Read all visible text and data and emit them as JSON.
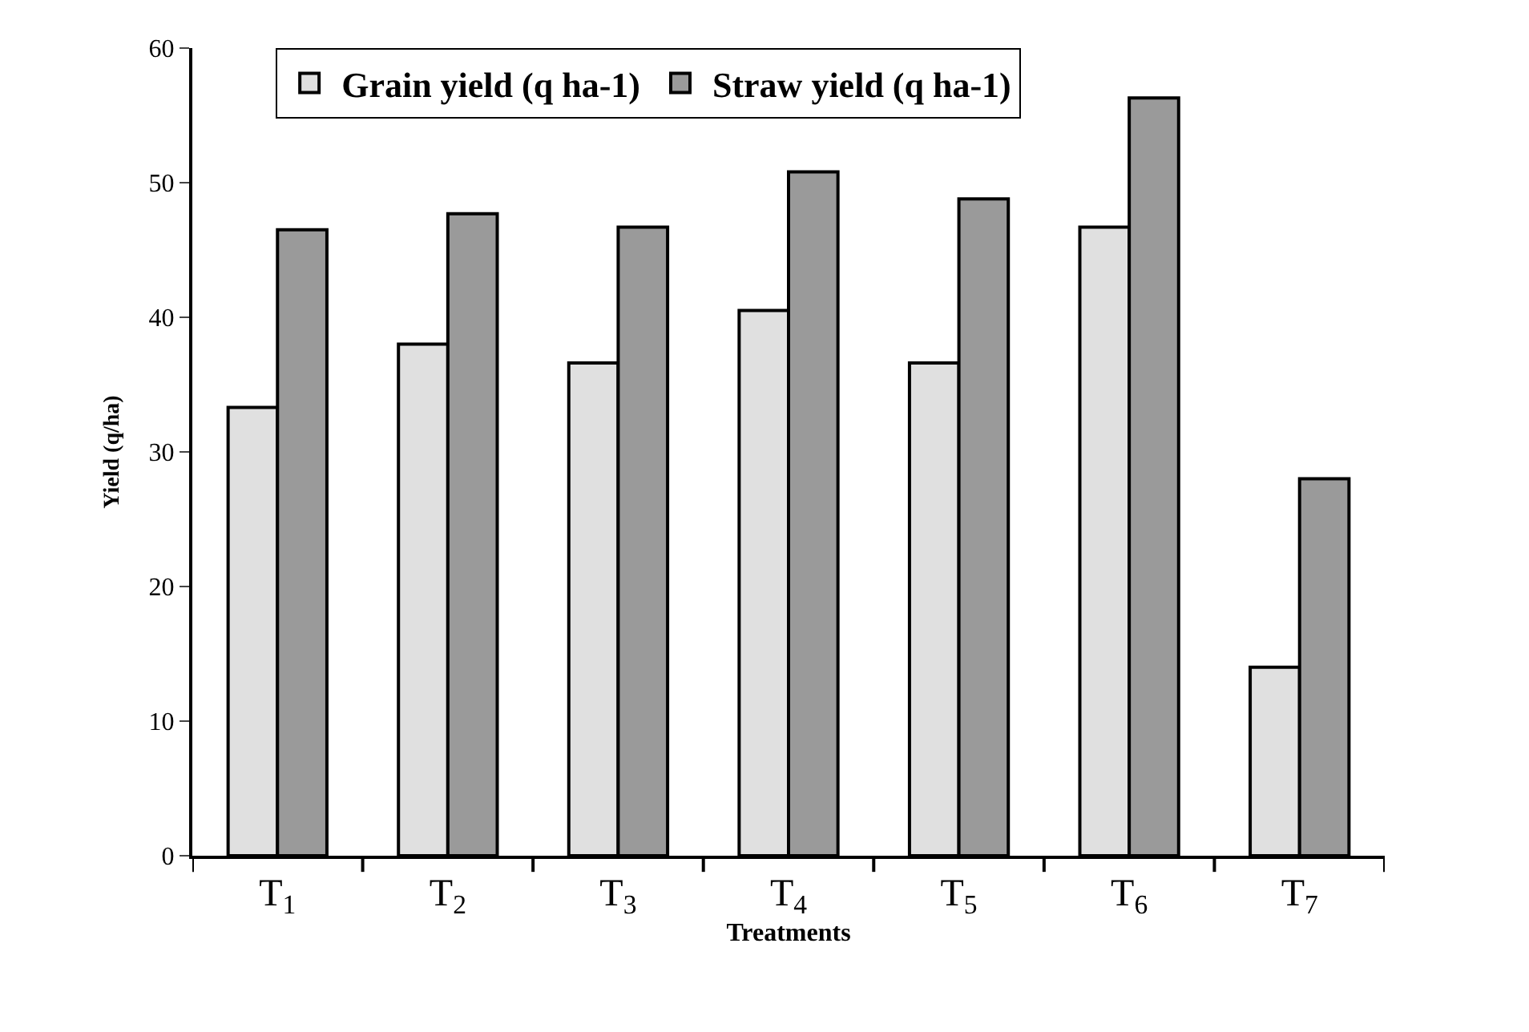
{
  "chart_data": {
    "type": "bar",
    "xlabel": "Treatments",
    "ylabel": "Yield (q/ha)",
    "categories": [
      "T$_{1}$",
      "T$_{2}$",
      "T$_{3}$",
      "T$_{4}$",
      "T$_{5}$",
      "T$_{6}$",
      "T$_{7}$"
    ],
    "series": [
      {
        "name": "Grain yield (q ha-1)",
        "color": "#e0e0e0",
        "values": [
          33.3,
          38.0,
          36.6,
          40.5,
          36.6,
          46.7,
          14.0
        ]
      },
      {
        "name": "Straw yield (q ha-1)",
        "color": "#9a9a9a",
        "values": [
          46.5,
          47.7,
          46.7,
          50.8,
          48.8,
          56.3,
          28.0
        ]
      }
    ],
    "ylim": [
      0,
      60
    ],
    "yticks": [
      0,
      10,
      20,
      30,
      40,
      50,
      60
    ],
    "legend": "top left"
  }
}
